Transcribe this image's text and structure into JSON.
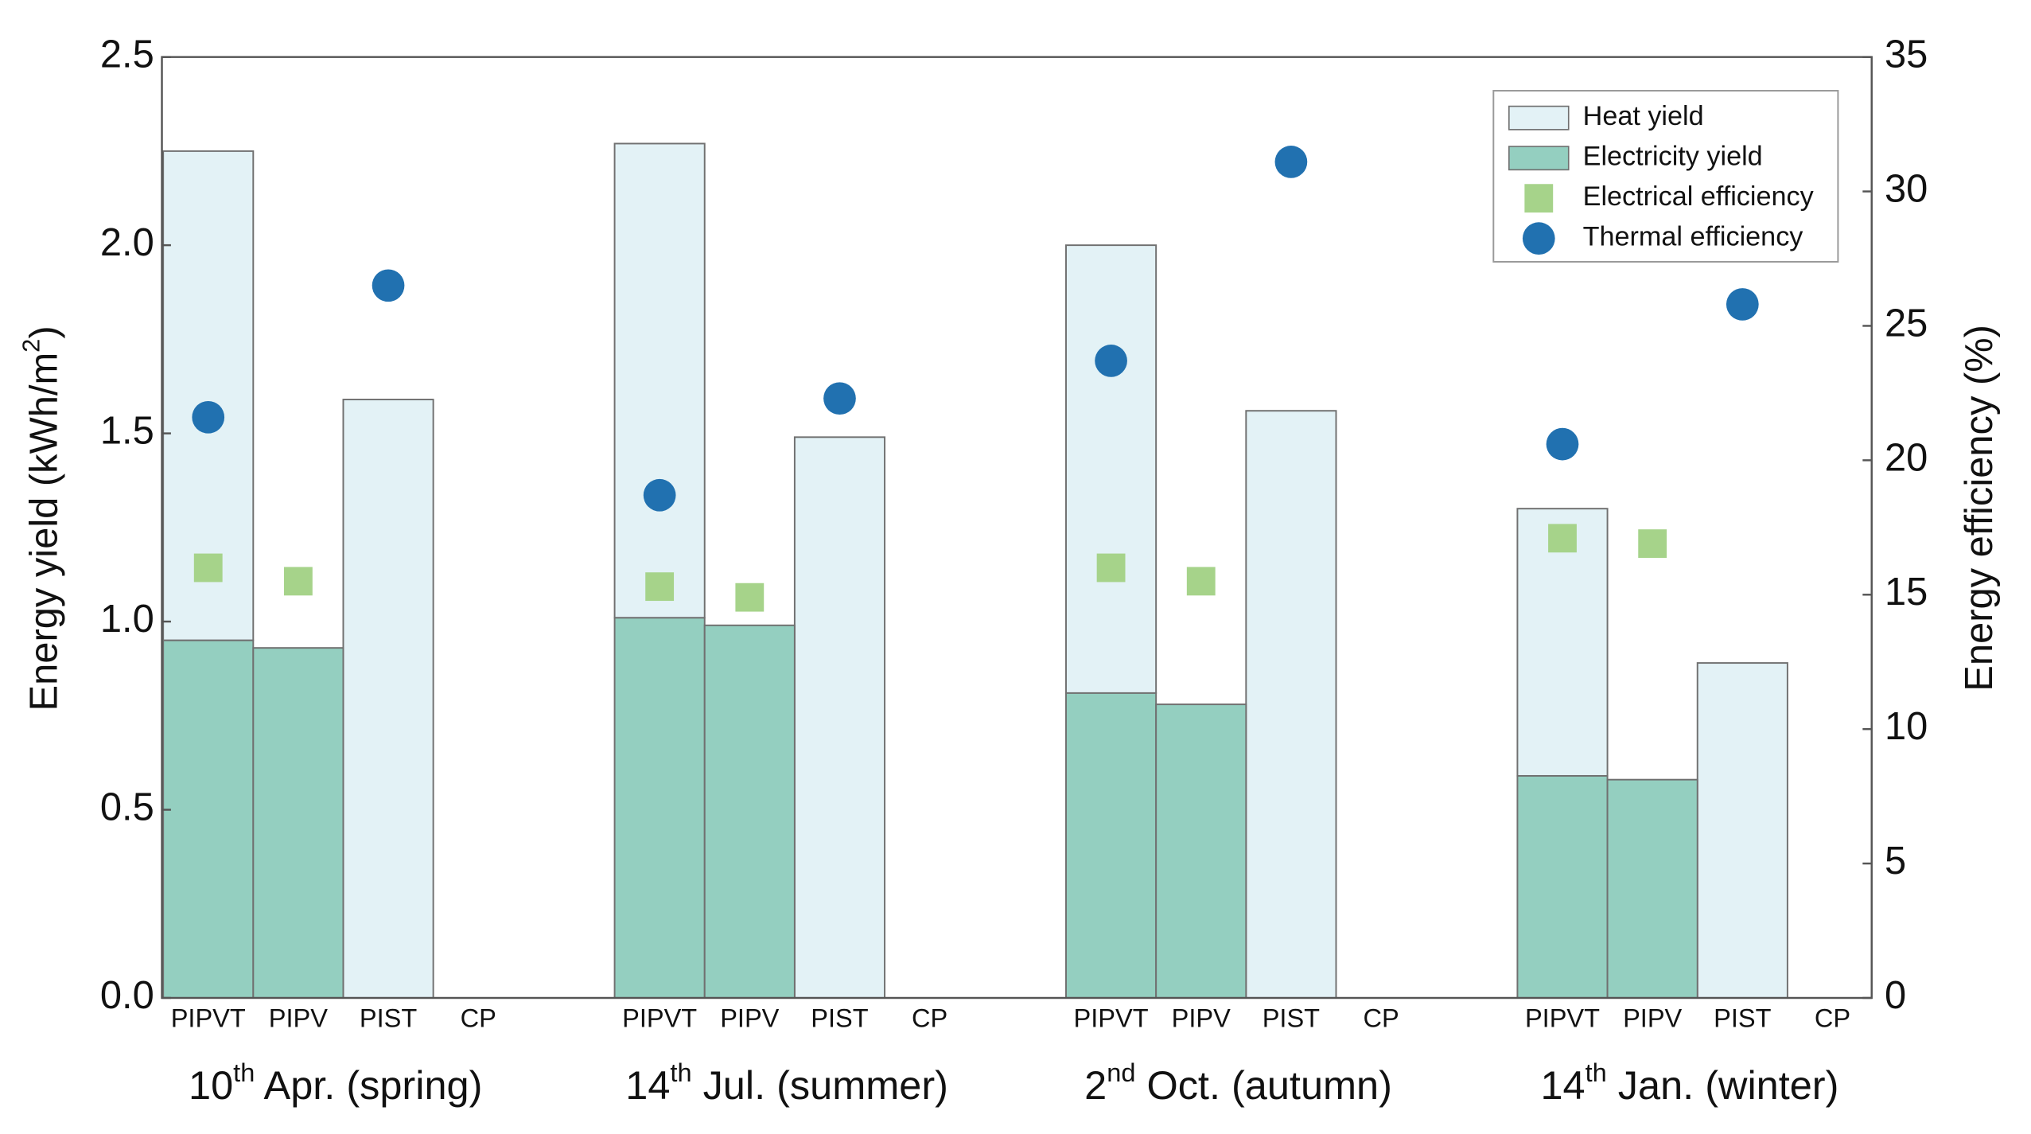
{
  "chart_data": {
    "type": "stacked-bar-scatter",
    "y_label": [
      "Energy yield (kWh/m",
      "2",
      ")"
    ],
    "y2_label": "Energy efficiency (%)",
    "groups": [
      [
        "10",
        "th",
        " Apr. (spring)"
      ],
      [
        "14",
        "th",
        " Jul. (summer)"
      ],
      [
        "2",
        "nd",
        " Oct. (autumn)"
      ],
      [
        "14",
        "th",
        " Jan. (winter)"
      ]
    ],
    "categories": [
      "PIPVT",
      "PIPV",
      "PIST",
      "CP",
      "PIPVT",
      "PIPV",
      "PIST",
      "CP",
      "PIPVT",
      "PIPV",
      "PIST",
      "CP",
      "PIPVT",
      "PIPV",
      "PIST",
      "CP"
    ],
    "ylim": [
      0,
      2.5
    ],
    "yticks": [
      {
        "value": 0,
        "label": "0.0"
      },
      0.5,
      {
        "value": 1,
        "label": "1.0"
      },
      1.5,
      {
        "value": 2,
        "label": "2.0"
      },
      2.5
    ],
    "y2lim": [
      0,
      35
    ],
    "y2ticks": [
      0,
      5,
      10,
      15,
      20,
      25,
      30,
      35
    ],
    "legend": "upper right",
    "series": [
      {
        "name": "Heat yield",
        "kind": "bar",
        "stack_on": 1,
        "color": "#e3f2f6",
        "values": [
          1.3,
          null,
          1.59,
          null,
          1.26,
          null,
          1.49,
          null,
          1.19,
          null,
          1.56,
          null,
          0.71,
          null,
          0.89,
          null
        ]
      },
      {
        "name": "Electricity yield",
        "kind": "bar",
        "color": "#94cfc0",
        "values": [
          0.95,
          0.93,
          null,
          null,
          1.01,
          0.99,
          null,
          null,
          0.81,
          0.78,
          null,
          null,
          0.59,
          0.58,
          null,
          null
        ]
      },
      {
        "name": "Electrical efficiency",
        "kind": "square",
        "axis": "y2",
        "color": "#a6d38a",
        "values": [
          16.0,
          15.5,
          null,
          null,
          15.3,
          14.9,
          null,
          null,
          16.0,
          15.5,
          null,
          null,
          17.1,
          16.9,
          null,
          null
        ]
      },
      {
        "name": "Thermal efficiency",
        "kind": "circle",
        "axis": "y2",
        "color": "#2171b0",
        "values": [
          21.6,
          null,
          26.5,
          null,
          18.7,
          null,
          22.3,
          null,
          23.7,
          null,
          31.1,
          null,
          20.6,
          null,
          25.8,
          null
        ]
      }
    ]
  }
}
